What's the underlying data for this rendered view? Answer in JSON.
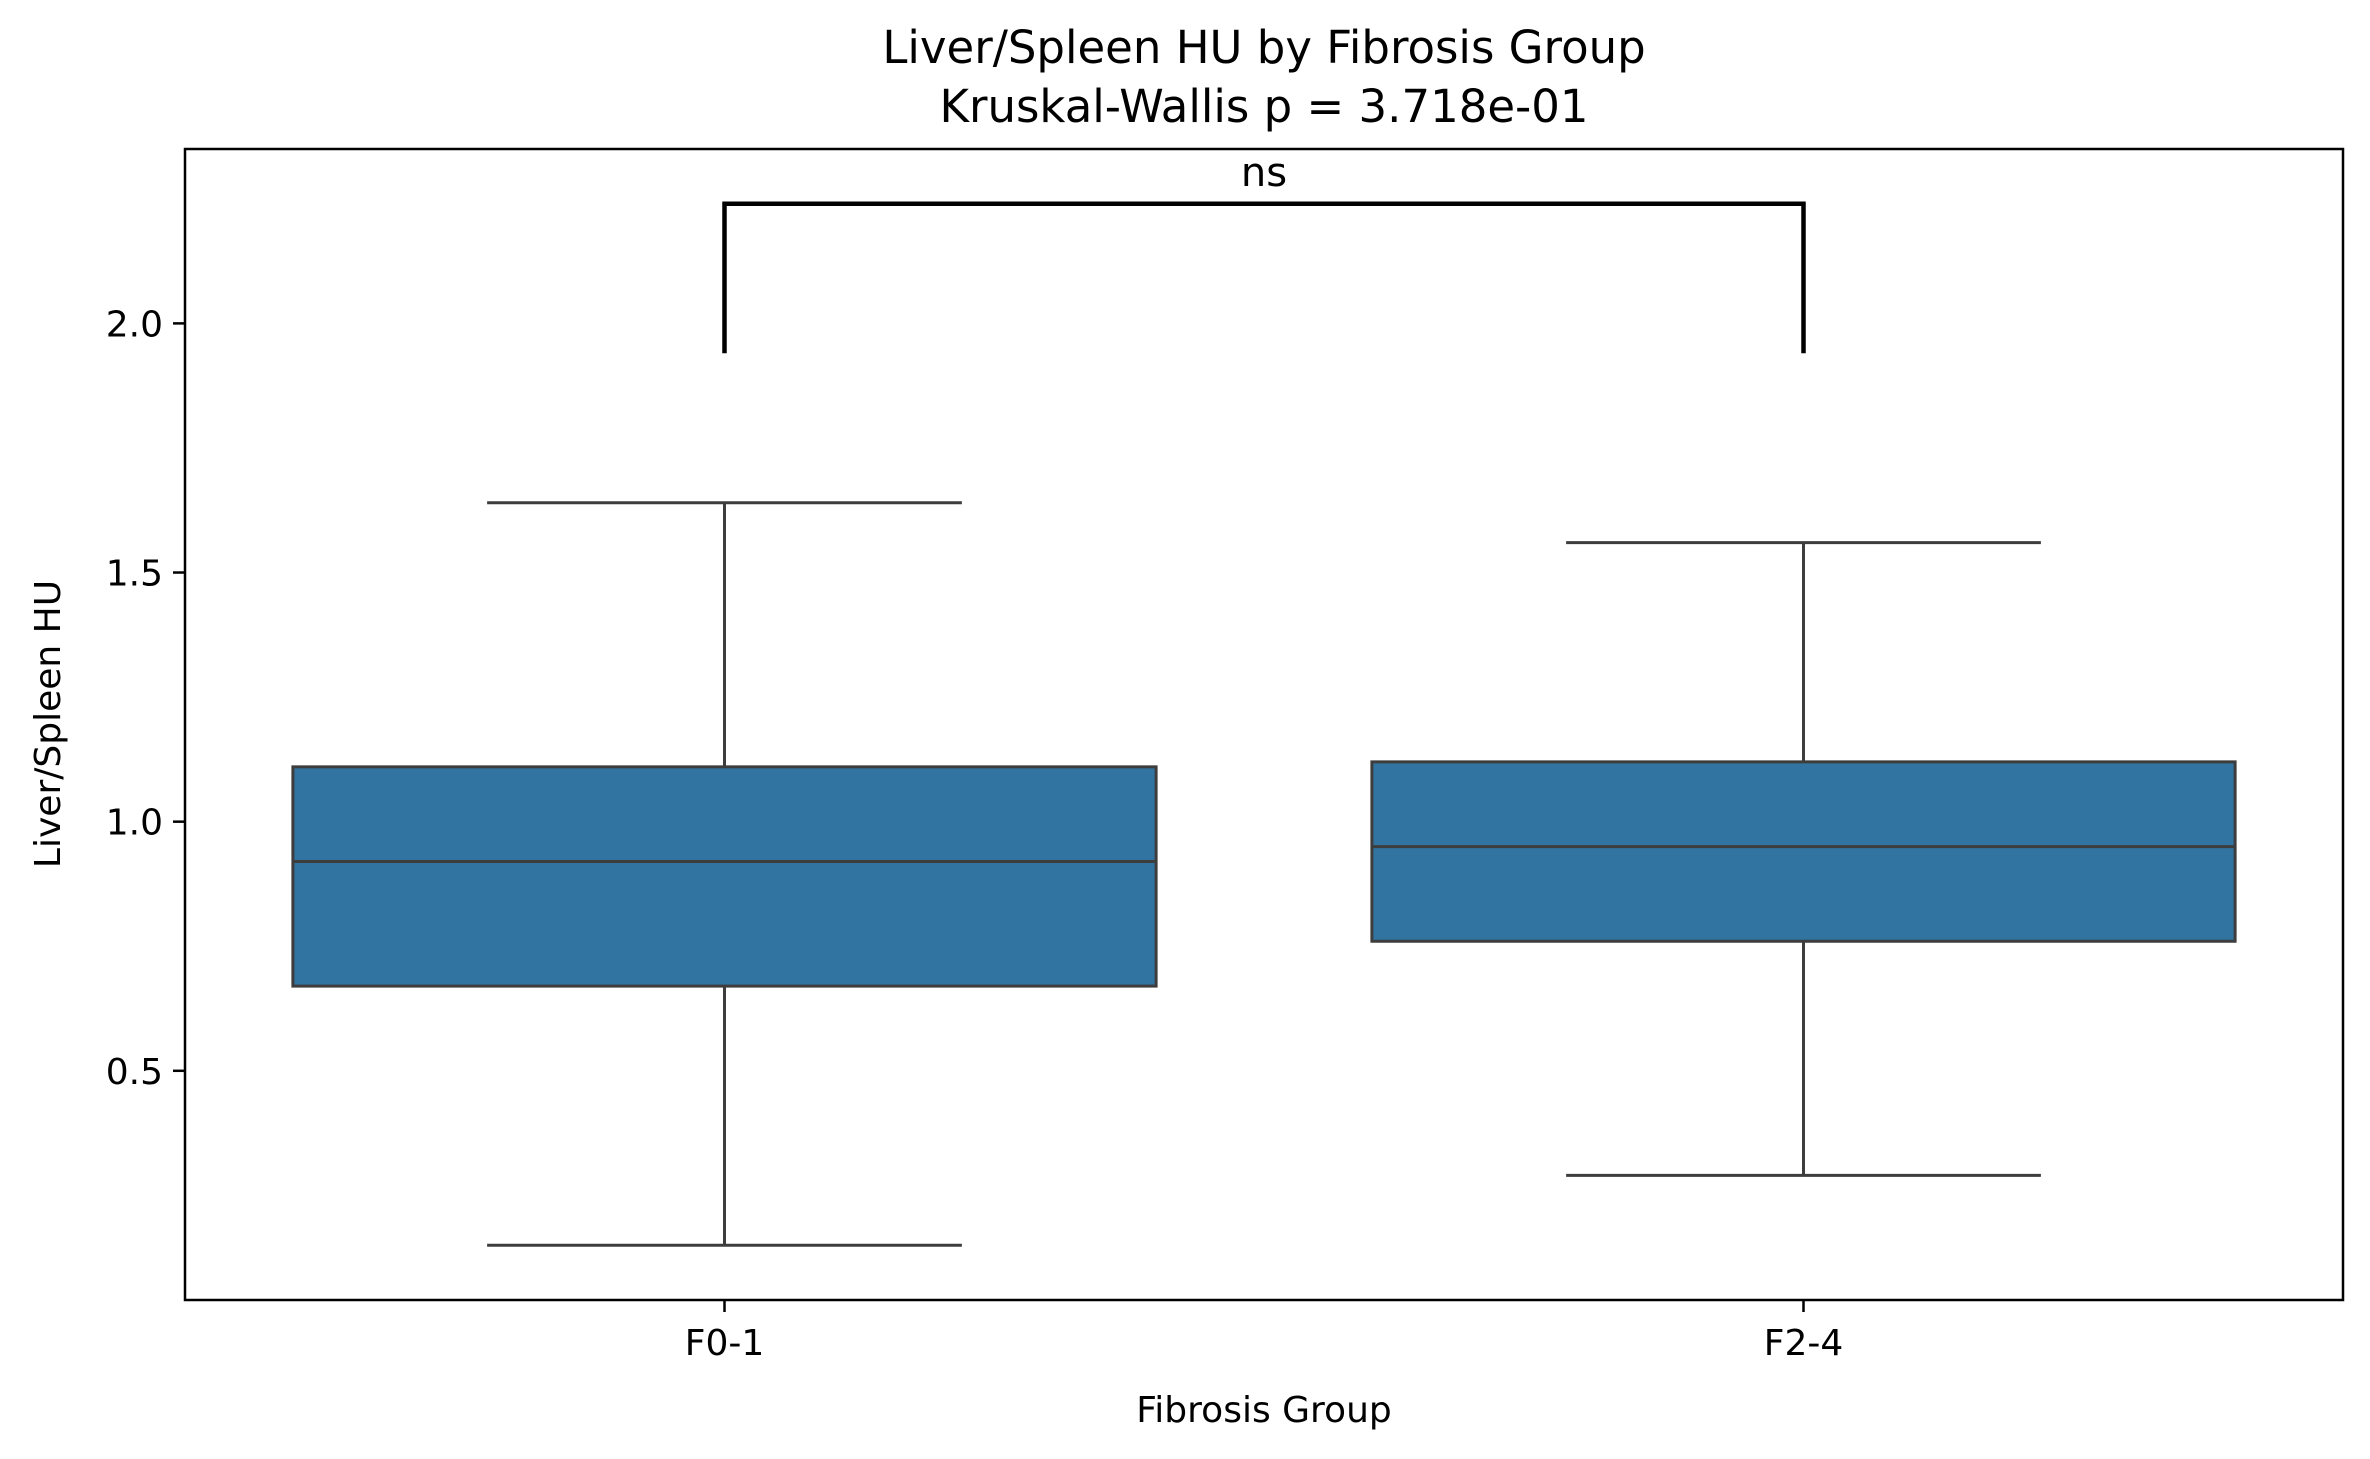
{
  "chart_data": {
    "type": "box",
    "title": "Liver/Spleen HU by Fibrosis Group",
    "subtitle": "Kruskal-Wallis p = 3.718e-01",
    "xlabel": "Fibrosis Group",
    "ylabel": "Liver/Spleen HU",
    "ylim": [
      0.04,
      2.35
    ],
    "yticks": [
      0.5,
      1.0,
      1.5,
      2.0
    ],
    "ytick_labels": [
      "0.5",
      "1.0",
      "1.5",
      "2.0"
    ],
    "grid": false,
    "categories": [
      "F0-1",
      "F2-4"
    ],
    "boxes": [
      {
        "category": "F0-1",
        "whisker_low": 0.15,
        "q1": 0.67,
        "median": 0.92,
        "q3": 1.11,
        "whisker_high": 1.64
      },
      {
        "category": "F2-4",
        "whisker_low": 0.29,
        "q1": 0.76,
        "median": 0.95,
        "q3": 1.12,
        "whisker_high": 1.56
      }
    ],
    "annotation": {
      "text": "ns",
      "from": "F0-1",
      "to": "F2-4",
      "y_low": 1.94,
      "y_high": 2.24
    },
    "colors": {
      "box_fill": "#3274a1",
      "box_edge": "#3d3d3d",
      "bracket": "#000000"
    }
  }
}
